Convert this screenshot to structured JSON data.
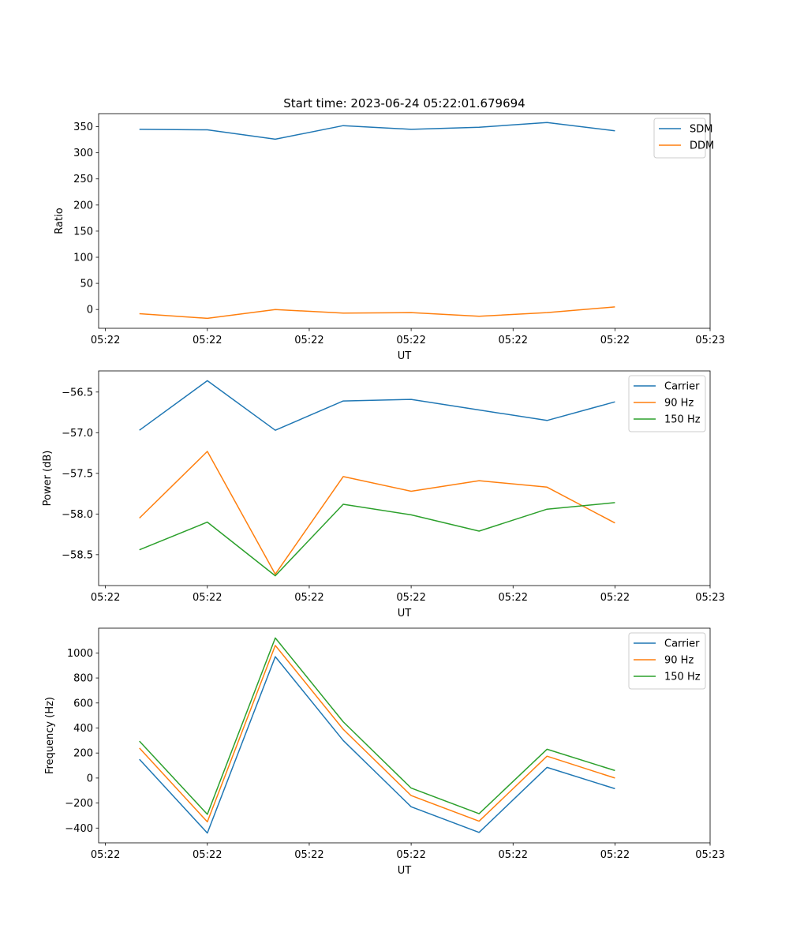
{
  "title": "Start time: 2023-06-24 05:22:01.679694",
  "chart_data": [
    {
      "type": "line",
      "x": [
        0.6,
        1.6,
        2.6,
        3.6,
        4.6,
        5.6,
        6.6,
        7.6
      ],
      "xlim": [
        0,
        9
      ],
      "xticks": [
        0.1,
        1.6,
        3.1,
        4.6,
        6.1,
        7.6,
        9.0
      ],
      "xtick_labels": [
        "05:22",
        "05:22",
        "05:22",
        "05:22",
        "05:22",
        "05:22",
        "05:23"
      ],
      "xlabel": "UT",
      "ylabel": "Ratio",
      "ylim": [
        -36,
        375
      ],
      "yticks": [
        0,
        50,
        100,
        150,
        200,
        250,
        300,
        350
      ],
      "ytick_labels": [
        "0",
        "50",
        "100",
        "150",
        "200",
        "250",
        "300",
        "350"
      ],
      "legend": "top-right",
      "series": [
        {
          "name": "SDM",
          "color": "#1f77b4",
          "values": [
            345,
            344,
            326,
            352,
            345,
            349,
            358,
            342
          ]
        },
        {
          "name": "DDM",
          "color": "#ff7f0e",
          "values": [
            -8,
            -17,
            0,
            -7,
            -6,
            -13,
            -6,
            5
          ]
        }
      ]
    },
    {
      "type": "line",
      "x": [
        0.6,
        1.6,
        2.6,
        3.6,
        4.6,
        5.6,
        6.6,
        7.6
      ],
      "xlim": [
        0,
        9
      ],
      "xticks": [
        0.1,
        1.6,
        3.1,
        4.6,
        6.1,
        7.6,
        9.0
      ],
      "xtick_labels": [
        "05:22",
        "05:22",
        "05:22",
        "05:22",
        "05:22",
        "05:22",
        "05:23"
      ],
      "xlabel": "UT",
      "ylabel": "Power (dB)",
      "ylim": [
        -58.88,
        -56.24
      ],
      "yticks": [
        -58.5,
        -58.0,
        -57.5,
        -57.0,
        -56.5
      ],
      "ytick_labels": [
        "−58.5",
        "−58.0",
        "−57.5",
        "−57.0",
        "−56.5"
      ],
      "legend": "top-right",
      "series": [
        {
          "name": "Carrier",
          "color": "#1f77b4",
          "values": [
            -56.97,
            -56.36,
            -56.97,
            -56.61,
            -56.59,
            -56.72,
            -56.85,
            -56.62
          ]
        },
        {
          "name": "90 Hz",
          "color": "#ff7f0e",
          "values": [
            -58.05,
            -57.23,
            -58.74,
            -57.54,
            -57.72,
            -57.59,
            -57.67,
            -58.11
          ]
        },
        {
          "name": "150 Hz",
          "color": "#2ca02c",
          "values": [
            -58.44,
            -58.1,
            -58.76,
            -57.88,
            -58.01,
            -58.21,
            -57.94,
            -57.86
          ]
        }
      ]
    },
    {
      "type": "line",
      "x": [
        0.6,
        1.6,
        2.6,
        3.6,
        4.6,
        5.6,
        6.6,
        7.6
      ],
      "xlim": [
        0,
        9
      ],
      "xticks": [
        0.1,
        1.6,
        3.1,
        4.6,
        6.1,
        7.6,
        9.0
      ],
      "xtick_labels": [
        "05:22",
        "05:22",
        "05:22",
        "05:22",
        "05:22",
        "05:22",
        "05:23"
      ],
      "xlabel": "UT",
      "ylabel": "Frequency (Hz)",
      "ylim": [
        -518,
        1198
      ],
      "yticks": [
        -400,
        -200,
        0,
        200,
        400,
        600,
        800,
        1000
      ],
      "ytick_labels": [
        "−400",
        "−200",
        "0",
        "200",
        "400",
        "600",
        "800",
        "1000"
      ],
      "legend": "top-right",
      "series": [
        {
          "name": "Carrier",
          "color": "#1f77b4",
          "values": [
            150,
            -440,
            970,
            300,
            -230,
            -435,
            85,
            -85
          ]
        },
        {
          "name": "90 Hz",
          "color": "#ff7f0e",
          "values": [
            240,
            -350,
            1060,
            390,
            -140,
            -345,
            175,
            0
          ]
        },
        {
          "name": "150 Hz",
          "color": "#2ca02c",
          "values": [
            295,
            -290,
            1120,
            450,
            -80,
            -285,
            230,
            60
          ]
        }
      ]
    }
  ]
}
